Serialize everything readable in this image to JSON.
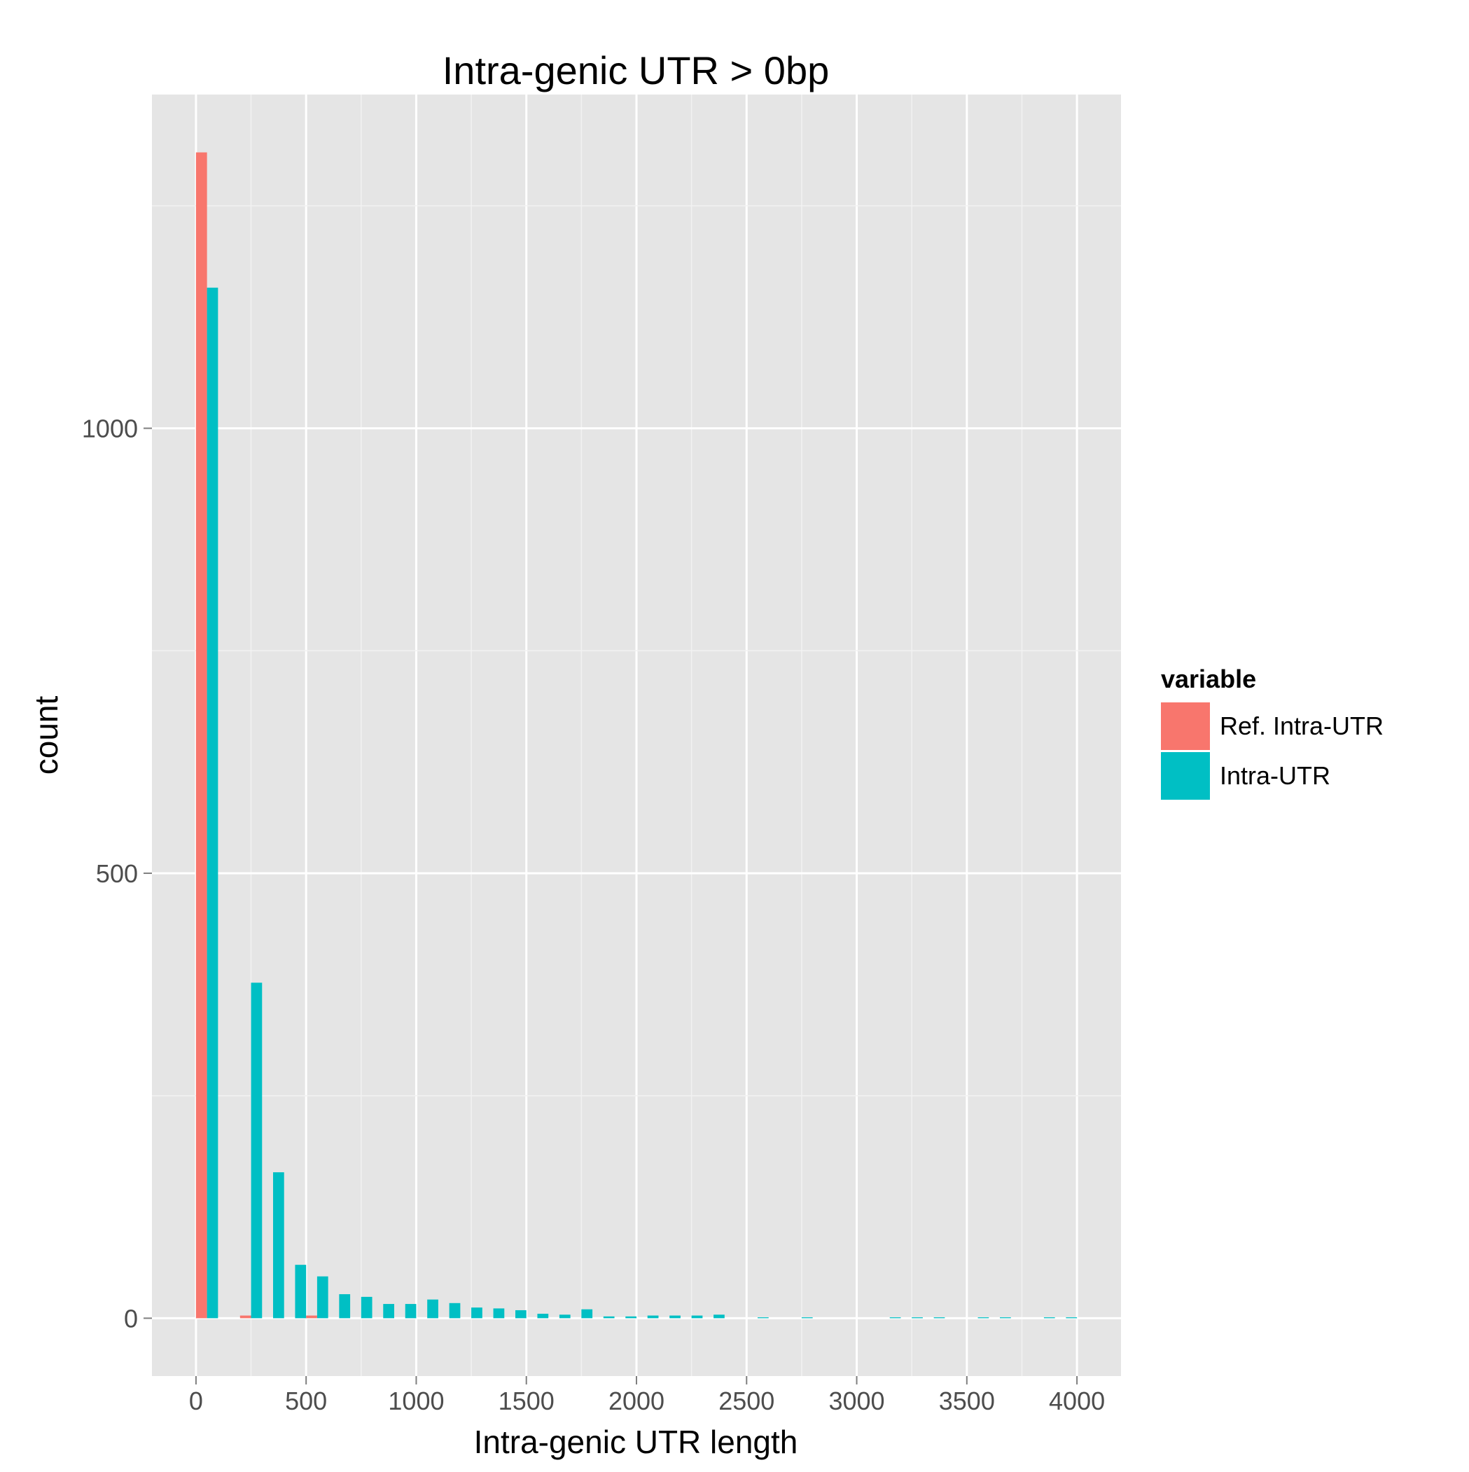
{
  "chart_data": {
    "type": "bar",
    "title": "Intra-genic UTR > 0bp",
    "xlabel": "Intra-genic UTR length",
    "ylabel": "count",
    "xlim": [
      -200,
      4200
    ],
    "ylim": [
      -65,
      1375
    ],
    "xticks": [
      "0",
      "500",
      "1000",
      "1500",
      "2000",
      "2500",
      "3000",
      "3500",
      "4000"
    ],
    "xtick_values": [
      0,
      500,
      1000,
      1500,
      2000,
      2500,
      3000,
      3500,
      4000
    ],
    "yticks": [
      "0",
      "500",
      "1000"
    ],
    "ytick_values": [
      0,
      500,
      1000
    ],
    "bin_width": 100,
    "grid": true,
    "legend": {
      "title": "variable",
      "position": "right",
      "entries": [
        {
          "name": "Ref. Intra-UTR",
          "color": "#F8766D"
        },
        {
          "name": "Intra-UTR",
          "color": "#00BFC4"
        }
      ]
    },
    "x": [
      0,
      100,
      200,
      300,
      400,
      500,
      600,
      700,
      800,
      900,
      1000,
      1100,
      1200,
      1300,
      1400,
      1500,
      1600,
      1700,
      1800,
      1900,
      2000,
      2100,
      2200,
      2300,
      2400,
      2500,
      2600,
      2700,
      2800,
      2900,
      3000,
      3100,
      3200,
      3300,
      3400,
      3500,
      3600,
      3700,
      3800,
      3900
    ],
    "series": [
      {
        "name": "Ref. Intra-UTR",
        "color": "#F8766D",
        "values": [
          1310,
          0,
          3,
          0,
          0,
          3,
          0,
          0,
          0,
          0,
          0,
          0,
          0,
          0,
          0,
          0,
          0,
          0,
          0,
          0,
          0,
          0,
          0,
          0,
          0,
          0,
          0,
          0,
          0,
          0,
          0,
          0,
          0,
          0,
          0,
          0,
          0,
          0,
          0,
          0
        ]
      },
      {
        "name": "Intra-UTR",
        "color": "#00BFC4",
        "values": [
          1158,
          0,
          377,
          164,
          60,
          47,
          27,
          24,
          16,
          16,
          21,
          17,
          12,
          11,
          9,
          5,
          4,
          10,
          2,
          2,
          3,
          3,
          3,
          4,
          0,
          1,
          0,
          1,
          0,
          0,
          0,
          1,
          1,
          1,
          0,
          1,
          1,
          0,
          1,
          1
        ]
      }
    ]
  }
}
